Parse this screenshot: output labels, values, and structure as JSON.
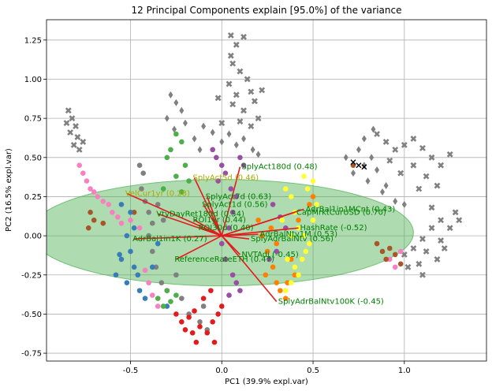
{
  "chart_data": {
    "type": "scatter",
    "title": "12 Principal Components explain [95.0%] of the variance",
    "xlabel": "PC1 (39.9% expl.var)",
    "ylabel": "PC2 (16.5% expl.var)",
    "xlim": [
      -0.96,
      1.45
    ],
    "ylim": [
      -0.8,
      1.38
    ],
    "x_ticks": [
      {
        "value": -0.5,
        "label": "-0.5"
      },
      {
        "value": 0.0,
        "label": "0.0"
      },
      {
        "value": 0.5,
        "label": "0.5"
      },
      {
        "value": 1.0,
        "label": "1.0"
      }
    ],
    "y_ticks": [
      {
        "value": -0.75,
        "label": "-0.75"
      },
      {
        "value": -0.5,
        "label": "-0.50"
      },
      {
        "value": -0.25,
        "label": "-0.25"
      },
      {
        "value": 0.0,
        "label": "0.00"
      },
      {
        "value": 0.25,
        "label": "0.25"
      },
      {
        "value": 0.5,
        "label": "0.50"
      },
      {
        "value": 0.75,
        "label": "0.75"
      },
      {
        "value": 1.0,
        "label": "1.00"
      },
      {
        "value": 1.25,
        "label": "1.25"
      }
    ],
    "grid": true,
    "confidence_ellipse": {
      "center": [
        0.0,
        0.02
      ],
      "width": 2.1,
      "height": 0.68,
      "color": "#4caf50",
      "opacity": 0.45
    },
    "clusters": [
      {
        "color": "#808080",
        "marker": "x-filled",
        "points": [
          [
            0.05,
            1.28
          ],
          [
            0.08,
            1.22
          ],
          [
            0.12,
            1.27
          ],
          [
            0.06,
            1.1
          ],
          [
            0.1,
            1.05
          ],
          [
            0.14,
            1.0
          ],
          [
            0.04,
            0.97
          ],
          [
            0.16,
            0.92
          ],
          [
            0.08,
            0.9
          ],
          [
            -0.02,
            0.88
          ],
          [
            0.06,
            0.84
          ],
          [
            0.12,
            0.8
          ],
          [
            0.18,
            0.86
          ],
          [
            0.2,
            0.75
          ],
          [
            0.1,
            0.73
          ],
          [
            0.16,
            0.7
          ],
          [
            0.0,
            0.72
          ],
          [
            0.22,
            0.93
          ],
          [
            0.05,
            1.15
          ]
        ]
      },
      {
        "color": "#808080",
        "marker": "diamond",
        "points": [
          [
            -0.28,
            0.9
          ],
          [
            -0.25,
            0.85
          ],
          [
            -0.22,
            0.8
          ],
          [
            -0.3,
            0.75
          ],
          [
            -0.2,
            0.72
          ],
          [
            -0.26,
            0.68
          ],
          [
            -0.15,
            0.62
          ],
          [
            -0.1,
            0.7
          ],
          [
            -0.05,
            0.66
          ],
          [
            0.0,
            0.6
          ],
          [
            0.04,
            0.65
          ],
          [
            0.08,
            0.58
          ],
          [
            0.12,
            0.62
          ],
          [
            0.17,
            0.55
          ],
          [
            0.2,
            0.52
          ],
          [
            -0.12,
            0.55
          ]
        ]
      },
      {
        "color": "#808080",
        "marker": "x-filled",
        "points": [
          [
            -0.84,
            0.8
          ],
          [
            -0.82,
            0.75
          ],
          [
            -0.8,
            0.7
          ],
          [
            -0.83,
            0.66
          ],
          [
            -0.79,
            0.63
          ],
          [
            -0.81,
            0.58
          ],
          [
            -0.78,
            0.55
          ],
          [
            -0.85,
            0.72
          ],
          [
            -0.76,
            0.6
          ]
        ]
      },
      {
        "color": "#808080",
        "marker": "x-filled",
        "points": [
          [
            0.85,
            0.65
          ],
          [
            0.9,
            0.6
          ],
          [
            0.95,
            0.55
          ],
          [
            1.0,
            0.58
          ],
          [
            1.05,
            0.62
          ],
          [
            1.1,
            0.56
          ],
          [
            1.15,
            0.5
          ],
          [
            1.2,
            0.45
          ],
          [
            1.25,
            0.52
          ],
          [
            1.05,
            0.45
          ],
          [
            0.98,
            0.4
          ],
          [
            0.92,
            0.48
          ],
          [
            1.12,
            0.38
          ],
          [
            1.08,
            0.3
          ],
          [
            1.18,
            0.32
          ],
          [
            1.28,
            0.15
          ],
          [
            1.2,
            0.1
          ],
          [
            1.15,
            0.05
          ],
          [
            1.1,
            -0.02
          ],
          [
            1.05,
            -0.08
          ],
          [
            1.0,
            -0.12
          ],
          [
            1.12,
            -0.1
          ],
          [
            1.2,
            -0.03
          ],
          [
            1.25,
            0.05
          ],
          [
            1.18,
            -0.15
          ],
          [
            1.08,
            -0.18
          ],
          [
            1.02,
            -0.2
          ],
          [
            1.1,
            -0.25
          ],
          [
            1.15,
            0.18
          ],
          [
            1.22,
            -0.08
          ],
          [
            1.3,
            0.1
          ]
        ]
      },
      {
        "color": "#808080",
        "marker": "diamond",
        "points": [
          [
            0.72,
            0.4
          ],
          [
            0.78,
            0.45
          ],
          [
            0.82,
            0.5
          ],
          [
            0.75,
            0.55
          ],
          [
            0.68,
            0.5
          ],
          [
            0.85,
            0.42
          ],
          [
            0.8,
            0.35
          ],
          [
            0.88,
            0.28
          ],
          [
            0.95,
            0.22
          ],
          [
            0.9,
            0.32
          ],
          [
            1.0,
            0.2
          ],
          [
            0.78,
            0.62
          ],
          [
            0.83,
            0.68
          ]
        ]
      },
      {
        "color": "#808080",
        "marker": "circle",
        "points": [
          [
            -0.45,
            0.45
          ],
          [
            -0.43,
            0.4
          ],
          [
            -0.44,
            0.3
          ],
          [
            -0.42,
            0.22
          ],
          [
            -0.4,
            0.15
          ],
          [
            -0.38,
            0.08
          ],
          [
            -0.4,
            0.0
          ],
          [
            -0.38,
            -0.1
          ],
          [
            -0.36,
            -0.2
          ],
          [
            -0.33,
            -0.3
          ],
          [
            -0.3,
            -0.35
          ],
          [
            -0.25,
            -0.25
          ],
          [
            -0.22,
            -0.4
          ],
          [
            -0.18,
            -0.5
          ],
          [
            -0.12,
            -0.55
          ],
          [
            -0.1,
            -0.45
          ],
          [
            -0.08,
            -0.6
          ],
          [
            -0.32,
            0.1
          ],
          [
            -0.35,
            0.2
          ]
        ]
      },
      {
        "color": "#f781bf",
        "marker": "circle",
        "points": [
          [
            -0.78,
            0.45
          ],
          [
            -0.76,
            0.4
          ],
          [
            -0.74,
            0.35
          ],
          [
            -0.72,
            0.3
          ],
          [
            -0.7,
            0.28
          ],
          [
            -0.68,
            0.25
          ],
          [
            -0.65,
            0.22
          ],
          [
            -0.62,
            0.2
          ],
          [
            -0.6,
            0.15
          ],
          [
            -0.57,
            0.12
          ],
          [
            -0.55,
            0.08
          ],
          [
            -0.5,
            0.1
          ],
          [
            -0.45,
            0.05
          ],
          [
            0.92,
            -0.15
          ],
          [
            0.95,
            -0.2
          ],
          [
            0.98,
            -0.1
          ],
          [
            -0.42,
            -0.22
          ],
          [
            -0.4,
            -0.3
          ],
          [
            -0.38,
            -0.38
          ],
          [
            -0.35,
            -0.45
          ]
        ]
      },
      {
        "color": "#a65628",
        "marker": "circle",
        "points": [
          [
            -0.72,
            0.15
          ],
          [
            -0.7,
            0.1
          ],
          [
            -0.73,
            0.05
          ],
          [
            -0.65,
            0.08
          ],
          [
            0.85,
            -0.05
          ],
          [
            0.88,
            -0.1
          ],
          [
            0.9,
            -0.15
          ],
          [
            0.92,
            -0.08
          ],
          [
            0.95,
            -0.12
          ],
          [
            0.98,
            -0.18
          ],
          [
            -0.48,
            0.15
          ],
          [
            0.72,
            0.45
          ]
        ]
      },
      {
        "color": "#377eb8",
        "marker": "circle",
        "points": [
          [
            -0.55,
            0.2
          ],
          [
            -0.5,
            0.15
          ],
          [
            -0.52,
            0.0
          ],
          [
            -0.5,
            -0.1
          ],
          [
            -0.48,
            -0.2
          ],
          [
            -0.55,
            -0.15
          ],
          [
            -0.52,
            -0.3
          ],
          [
            -0.45,
            -0.35
          ],
          [
            -0.42,
            -0.4
          ],
          [
            -0.38,
            -0.2
          ],
          [
            -0.3,
            -0.45
          ],
          [
            -0.48,
            0.05
          ],
          [
            -0.46,
            -0.25
          ],
          [
            -0.35,
            -0.05
          ],
          [
            -0.58,
            -0.25
          ],
          [
            -0.56,
            -0.12
          ]
        ]
      },
      {
        "color": "#4daf4a",
        "marker": "circle",
        "points": [
          [
            -0.25,
            0.65
          ],
          [
            -0.22,
            0.6
          ],
          [
            -0.28,
            0.55
          ],
          [
            -0.3,
            0.5
          ],
          [
            -0.2,
            0.45
          ],
          [
            -0.25,
            0.38
          ],
          [
            -0.32,
            0.3
          ],
          [
            -0.22,
            0.28
          ],
          [
            -0.18,
            0.35
          ],
          [
            -0.3,
            -0.35
          ],
          [
            -0.28,
            -0.42
          ],
          [
            -0.25,
            -0.38
          ],
          [
            -0.35,
            -0.4
          ],
          [
            -0.32,
            -0.45
          ]
        ]
      },
      {
        "color": "#e41a1c",
        "marker": "circle",
        "points": [
          [
            -0.25,
            -0.5
          ],
          [
            -0.22,
            -0.55
          ],
          [
            -0.2,
            -0.6
          ],
          [
            -0.18,
            -0.52
          ],
          [
            -0.15,
            -0.48
          ],
          [
            -0.12,
            -0.58
          ],
          [
            -0.08,
            -0.62
          ],
          [
            -0.05,
            -0.55
          ],
          [
            -0.02,
            -0.5
          ],
          [
            0.0,
            -0.45
          ],
          [
            -0.1,
            -0.4
          ],
          [
            -0.06,
            -0.35
          ],
          [
            -0.14,
            -0.68
          ],
          [
            -0.16,
            -0.62
          ],
          [
            -0.04,
            -0.68
          ]
        ]
      },
      {
        "color": "#984ea3",
        "marker": "circle",
        "points": [
          [
            -0.05,
            0.55
          ],
          [
            -0.03,
            0.5
          ],
          [
            0.0,
            0.45
          ],
          [
            0.02,
            0.4
          ],
          [
            -0.02,
            0.35
          ],
          [
            0.05,
            0.3
          ],
          [
            0.08,
            0.25
          ],
          [
            0.06,
            0.15
          ],
          [
            0.04,
            0.05
          ],
          [
            0.0,
            -0.05
          ],
          [
            0.02,
            -0.15
          ],
          [
            0.06,
            -0.25
          ],
          [
            0.08,
            -0.3
          ],
          [
            0.1,
            -0.35
          ],
          [
            0.04,
            -0.38
          ],
          [
            0.1,
            0.5
          ],
          [
            0.12,
            0.45
          ],
          [
            0.28,
            0.2
          ],
          [
            0.32,
            0.12
          ],
          [
            0.35,
            0.05
          ],
          [
            0.3,
            -0.1
          ],
          [
            0.26,
            -0.15
          ]
        ]
      },
      {
        "color": "#ff7f00",
        "marker": "circle",
        "points": [
          [
            0.2,
            0.1
          ],
          [
            0.22,
            0.0
          ],
          [
            0.25,
            -0.1
          ],
          [
            0.28,
            -0.2
          ],
          [
            0.3,
            -0.3
          ],
          [
            0.32,
            -0.35
          ],
          [
            0.35,
            -0.4
          ],
          [
            0.3,
            -0.05
          ],
          [
            0.27,
            0.05
          ],
          [
            0.24,
            -0.25
          ],
          [
            0.38,
            -0.15
          ],
          [
            0.4,
            -0.25
          ],
          [
            0.36,
            -0.3
          ],
          [
            0.42,
            0.1
          ],
          [
            0.48,
            0.2
          ],
          [
            0.5,
            0.25
          ]
        ]
      },
      {
        "color": "#ffff33",
        "marker": "circle",
        "points": [
          [
            0.35,
            0.3
          ],
          [
            0.38,
            0.25
          ],
          [
            0.4,
            0.15
          ],
          [
            0.42,
            0.05
          ],
          [
            0.45,
            0.0
          ],
          [
            0.48,
            -0.05
          ],
          [
            0.44,
            -0.15
          ],
          [
            0.4,
            -0.2
          ],
          [
            0.38,
            -0.3
          ],
          [
            0.35,
            -0.35
          ],
          [
            0.42,
            -0.25
          ],
          [
            0.46,
            -0.1
          ],
          [
            0.5,
            0.1
          ],
          [
            0.52,
            0.2
          ],
          [
            0.5,
            0.35
          ],
          [
            0.47,
            0.3
          ],
          [
            0.45,
            0.38
          ],
          [
            0.36,
            -0.15
          ],
          [
            0.38,
            0.0
          ],
          [
            0.33,
            0.1
          ]
        ]
      },
      {
        "color": "#000000",
        "marker": "x",
        "points": [
          [
            0.72,
            0.47
          ],
          [
            0.75,
            0.45
          ],
          [
            0.78,
            0.44
          ]
        ]
      }
    ],
    "loadings": [
      {
        "label": "SplyAct180d (0.48)",
        "x": 0.1,
        "y": 0.44,
        "color": "#008000"
      },
      {
        "label": "SplyAct5d (0.46)",
        "x": -0.15,
        "y": 0.37,
        "color": "#aaaa00"
      },
      {
        "label": "VelCur1yr (0.28)",
        "x": -0.52,
        "y": 0.27,
        "color": "#aaaa00"
      },
      {
        "label": "SplyAct7d (0.63)",
        "x": -0.08,
        "y": 0.25,
        "color": "#008000"
      },
      {
        "label": "SplyAct1d (0.56)",
        "x": -0.1,
        "y": 0.2,
        "color": "#008000"
      },
      {
        "label": "VtyDayRet180d (0.54)",
        "x": -0.35,
        "y": 0.14,
        "color": "#008000"
      },
      {
        "label": "ROI1yr (0.44)",
        "x": -0.15,
        "y": 0.1,
        "color": "#008000"
      },
      {
        "label": "ROI30d (0.40)",
        "x": -0.12,
        "y": 0.05,
        "color": "#008000"
      },
      {
        "label": "AdrBal1in1K (0.27)",
        "x": -0.48,
        "y": -0.02,
        "color": "#008000"
      },
      {
        "label": "SplyAdrBalNtv (0.56)",
        "x": 0.15,
        "y": -0.02,
        "color": "#008000"
      },
      {
        "label": "AdrBalNtv1M (0.53)",
        "x": 0.2,
        "y": 0.01,
        "color": "#008000"
      },
      {
        "label": "CapMrktCurUSD (0.70)",
        "x": 0.4,
        "y": 0.15,
        "color": "#008000"
      },
      {
        "label": "AdrBal1in1MCnt (0.43)",
        "x": 0.45,
        "y": 0.17,
        "color": "#008000"
      },
      {
        "label": "HashRate (-0.52)",
        "x": 0.42,
        "y": 0.05,
        "color": "#008000"
      },
      {
        "label": "ReferenceRateETH (0.47)",
        "x": -0.25,
        "y": -0.15,
        "color": "#008000"
      },
      {
        "label": "NVTAdj (-0.45)",
        "x": 0.1,
        "y": -0.12,
        "color": "#008000"
      },
      {
        "label": "SplyAdrBalNtv100K (-0.45)",
        "x": 0.3,
        "y": -0.42,
        "color": "#008000"
      }
    ]
  }
}
